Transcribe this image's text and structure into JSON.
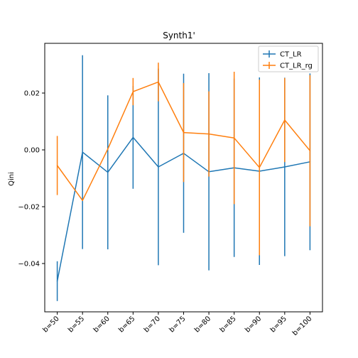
{
  "chart_data": {
    "type": "line",
    "title": "Synth1'",
    "xlabel": "",
    "ylabel": "Qini",
    "categories": [
      "b=50",
      "b=55",
      "b=60",
      "b=65",
      "b=70",
      "b=75",
      "b=80",
      "b=85",
      "b=90",
      "b=95",
      "b=100"
    ],
    "ylim": [
      -0.057,
      0.0375
    ],
    "yticks": [
      -0.04,
      -0.02,
      0.0,
      0.02
    ],
    "ytick_labels": [
      "−0.04",
      "−0.02",
      "0.00",
      "0.02"
    ],
    "grid": false,
    "legend_position": "top-right",
    "series": [
      {
        "name": "CT_LR",
        "color": "#1f77b4",
        "values": [
          -0.0462,
          -0.0008,
          -0.0079,
          0.0044,
          -0.006,
          -0.0012,
          -0.0077,
          -0.0063,
          -0.0075,
          -0.006,
          -0.0042
        ],
        "yerr": [
          0.007,
          0.0341,
          0.0271,
          0.0181,
          0.0346,
          0.028,
          0.0347,
          0.0314,
          0.033,
          0.0314,
          0.0311
        ]
      },
      {
        "name": "CT_LR_rg",
        "color": "#ff7f0e",
        "values": [
          -0.0055,
          -0.0178,
          0.0003,
          0.0205,
          0.0239,
          0.0061,
          0.0056,
          0.0042,
          -0.0062,
          0.0105,
          -0.0003
        ],
        "yerr": [
          0.0104,
          0.0,
          0.0,
          0.0048,
          0.0068,
          0.0174,
          0.015,
          0.0233,
          0.0309,
          0.0148,
          0.0266
        ]
      }
    ]
  }
}
